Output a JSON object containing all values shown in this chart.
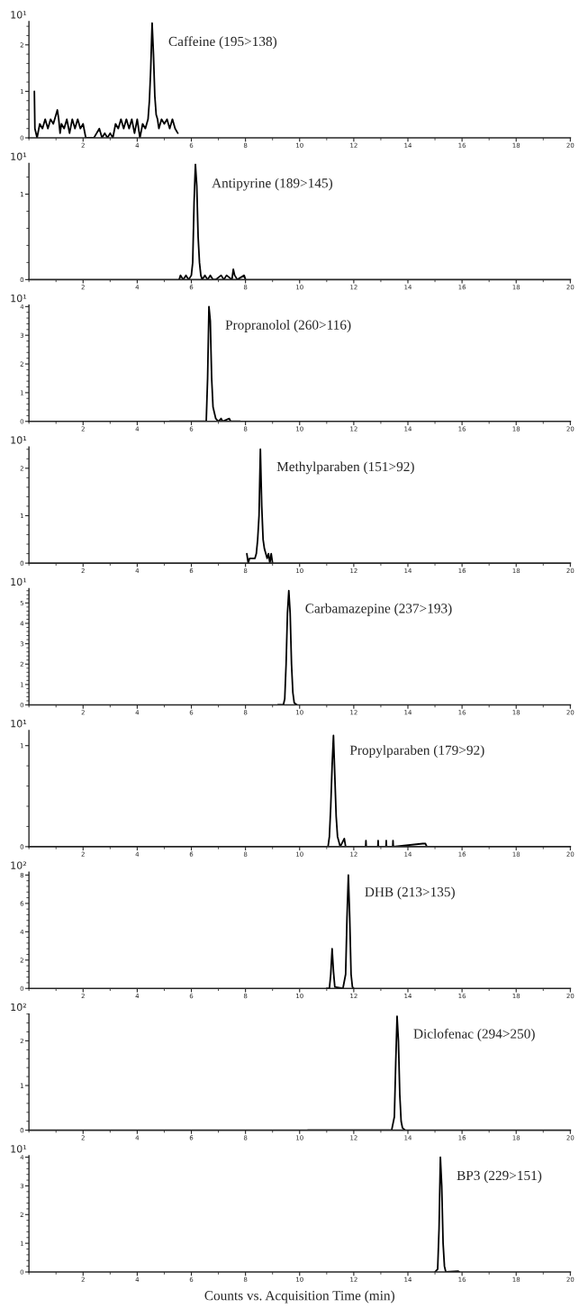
{
  "chart_data": [
    {
      "type": "line",
      "title": "Caffeine (195>138)",
      "ylabel": "10¹",
      "xlim": [
        0,
        20
      ],
      "xticks": [
        2,
        4,
        6,
        8,
        10,
        12,
        14,
        16,
        18,
        20
      ],
      "ylim": [
        0,
        2.5
      ],
      "yticks": [
        0,
        1,
        2
      ],
      "series": [
        {
          "color": "#000000",
          "x": [
            0.2,
            0.22,
            0.3,
            0.4,
            0.5,
            0.6,
            0.7,
            0.8,
            0.9,
            1.0,
            1.05,
            1.1,
            1.15,
            1.2,
            1.3,
            1.4,
            1.5,
            1.6,
            1.7,
            1.8,
            1.9,
            2.0,
            2.1,
            2.4,
            2.5,
            2.6,
            2.7,
            2.8,
            2.9,
            3.0,
            3.1,
            3.2,
            3.3,
            3.4,
            3.5,
            3.6,
            3.7,
            3.8,
            3.9,
            4.0,
            4.1,
            4.2,
            4.3,
            4.4,
            4.45,
            4.5,
            4.55,
            4.6,
            4.65,
            4.7,
            4.75,
            4.8,
            4.9,
            5.0,
            5.1,
            5.2,
            5.3,
            5.4,
            5.5
          ],
          "values": [
            1.0,
            0.2,
            0.0,
            0.3,
            0.2,
            0.4,
            0.2,
            0.4,
            0.3,
            0.5,
            0.6,
            0.4,
            0.1,
            0.3,
            0.2,
            0.4,
            0.1,
            0.4,
            0.2,
            0.4,
            0.2,
            0.3,
            0.0,
            0.0,
            0.1,
            0.2,
            0.0,
            0.1,
            0.0,
            0.1,
            0.0,
            0.3,
            0.2,
            0.4,
            0.2,
            0.4,
            0.2,
            0.4,
            0.1,
            0.4,
            0.0,
            0.3,
            0.2,
            0.4,
            0.8,
            1.5,
            2.47,
            1.8,
            0.9,
            0.5,
            0.4,
            0.2,
            0.4,
            0.3,
            0.4,
            0.2,
            0.4,
            0.2,
            0.1
          ]
        }
      ]
    },
    {
      "type": "line",
      "title": "Antipyrine (189>145)",
      "ylabel": "10¹",
      "xlim": [
        0,
        20
      ],
      "xticks": [
        2,
        4,
        6,
        8,
        10,
        12,
        14,
        16,
        18,
        20
      ],
      "ylim": [
        0,
        1.36
      ],
      "yticks": [
        0,
        1
      ],
      "series": [
        {
          "color": "#000000",
          "x": [
            5.55,
            5.6,
            5.7,
            5.8,
            5.9,
            6.0,
            6.05,
            6.1,
            6.15,
            6.2,
            6.25,
            6.3,
            6.35,
            6.4,
            6.5,
            6.6,
            6.7,
            6.8,
            6.9,
            7.1,
            7.2,
            7.3,
            7.5,
            7.55,
            7.6,
            7.7,
            7.95,
            8.0
          ],
          "values": [
            0,
            0.05,
            0,
            0.05,
            0,
            0.05,
            0.2,
            0.9,
            1.35,
            1.1,
            0.5,
            0.2,
            0.05,
            0,
            0.05,
            0,
            0.05,
            0,
            0,
            0.05,
            0,
            0.05,
            0,
            0.12,
            0.05,
            0,
            0.05,
            0
          ]
        }
      ]
    },
    {
      "type": "line",
      "title": "Propranolol (260>116)",
      "ylabel": "10¹",
      "xlim": [
        0,
        20
      ],
      "xticks": [
        2,
        4,
        6,
        8,
        10,
        12,
        14,
        16,
        18,
        20
      ],
      "ylim": [
        0,
        4.05
      ],
      "yticks": [
        0,
        1,
        2,
        3,
        4
      ],
      "series": [
        {
          "color": "#000000",
          "x": [
            5.2,
            6.55,
            6.6,
            6.65,
            6.7,
            6.75,
            6.8,
            6.85,
            6.9,
            7.0,
            7.1,
            7.15,
            7.4,
            7.45,
            7.8
          ],
          "values": [
            0,
            0,
            1.5,
            4.0,
            3.5,
            1.5,
            0.5,
            0.3,
            0.1,
            0,
            0.1,
            0,
            0.1,
            0,
            0
          ]
        }
      ]
    },
    {
      "type": "line",
      "title": "Methylparaben (151>92)",
      "ylabel": "10¹",
      "xlim": [
        0,
        20
      ],
      "xticks": [
        2,
        4,
        6,
        8,
        10,
        12,
        14,
        16,
        18,
        20
      ],
      "ylim": [
        0,
        2.45
      ],
      "yticks": [
        0,
        1,
        2
      ],
      "series": [
        {
          "color": "#000000",
          "x": [
            8.05,
            8.1,
            8.15,
            8.35,
            8.4,
            8.45,
            8.5,
            8.55,
            8.6,
            8.65,
            8.7,
            8.75,
            8.8,
            8.85,
            8.9,
            8.95,
            9.0
          ],
          "values": [
            0.2,
            0,
            0.1,
            0.1,
            0.2,
            0.5,
            1.0,
            2.4,
            1.2,
            0.5,
            0.3,
            0.2,
            0.1,
            0.2,
            0,
            0.2,
            0
          ]
        }
      ]
    },
    {
      "type": "line",
      "title": "Carbamazepine (237>193)",
      "ylabel": "10¹",
      "xlim": [
        0,
        20
      ],
      "xticks": [
        2,
        4,
        6,
        8,
        10,
        12,
        14,
        16,
        18,
        20
      ],
      "ylim": [
        0,
        5.7
      ],
      "yticks": [
        0,
        1,
        2,
        3,
        4,
        5
      ],
      "series": [
        {
          "color": "#000000",
          "x": [
            9.2,
            9.4,
            9.45,
            9.5,
            9.55,
            9.6,
            9.65,
            9.7,
            9.75,
            9.8,
            9.9
          ],
          "values": [
            0,
            0,
            0.3,
            2.0,
            4.5,
            5.6,
            4.5,
            2.0,
            0.6,
            0.1,
            0
          ]
        }
      ]
    },
    {
      "type": "line",
      "title": "Propylparaben (179>92)",
      "ylabel": "10¹",
      "xlim": [
        0,
        20
      ],
      "xticks": [
        2,
        4,
        6,
        8,
        10,
        12,
        14,
        16,
        18,
        20
      ],
      "ylim": [
        0,
        1.15
      ],
      "yticks": [
        0,
        1
      ],
      "series": [
        {
          "color": "#000000",
          "x": [
            10.5,
            11.05,
            11.1,
            11.15,
            11.2,
            11.25,
            11.3,
            11.35,
            11.4,
            11.5,
            11.65,
            11.7,
            12.44,
            12.45,
            12.46,
            12.89,
            12.9,
            12.91,
            13.19,
            13.2,
            13.21,
            13.44,
            13.45,
            13.46,
            14.55,
            14.65,
            14.7
          ],
          "values": [
            0,
            0,
            0.1,
            0.4,
            0.8,
            1.1,
            0.7,
            0.3,
            0.1,
            0,
            0.08,
            0,
            0,
            0.06,
            0,
            0,
            0.06,
            0,
            0,
            0.06,
            0,
            0,
            0.06,
            0,
            0.03,
            0.03,
            0
          ]
        }
      ]
    },
    {
      "type": "line",
      "title": "DHB (213>135)",
      "ylabel": "10²",
      "xlim": [
        0,
        20
      ],
      "xticks": [
        2,
        4,
        6,
        8,
        10,
        12,
        14,
        16,
        18,
        20
      ],
      "ylim": [
        0,
        8.2
      ],
      "yticks": [
        0,
        2,
        4,
        6,
        8
      ],
      "series": [
        {
          "color": "#000000",
          "x": [
            11.0,
            11.1,
            11.15,
            11.2,
            11.25,
            11.3,
            11.6,
            11.7,
            11.75,
            11.8,
            11.85,
            11.9,
            11.95,
            12.0
          ],
          "values": [
            0,
            0,
            1.0,
            2.8,
            1.2,
            0.1,
            0,
            1.0,
            5.0,
            8.0,
            5.0,
            1.0,
            0.1,
            0
          ]
        }
      ]
    },
    {
      "type": "line",
      "title": "Diclofenac (294>250)",
      "ylabel": "10²",
      "xlim": [
        0,
        20
      ],
      "xticks": [
        2,
        4,
        6,
        8,
        10,
        12,
        14,
        16,
        18,
        20
      ],
      "ylim": [
        0,
        2.6
      ],
      "yticks": [
        0,
        1,
        2
      ],
      "series": [
        {
          "color": "#000000",
          "x": [
            10.3,
            13.4,
            13.5,
            13.55,
            13.6,
            13.65,
            13.7,
            13.75,
            13.8,
            13.9
          ],
          "values": [
            0,
            0,
            0.3,
            1.5,
            2.55,
            2.0,
            0.8,
            0.2,
            0.05,
            0
          ]
        }
      ]
    },
    {
      "type": "line",
      "title": "BP3 (229>151)",
      "ylabel": "10¹",
      "xlabel": "Counts vs. Acquisition Time (min)",
      "xlim": [
        0,
        20
      ],
      "xticks": [
        2,
        4,
        6,
        8,
        10,
        12,
        14,
        16,
        18,
        20
      ],
      "ylim": [
        0,
        4.05
      ],
      "yticks": [
        0,
        1,
        2,
        3,
        4
      ],
      "series": [
        {
          "color": "#000000",
          "x": [
            15.0,
            15.1,
            15.15,
            15.2,
            15.25,
            15.3,
            15.35,
            15.4,
            15.85,
            15.9
          ],
          "values": [
            0,
            0.1,
            1.5,
            4.0,
            3.0,
            1.0,
            0.2,
            0,
            0.03,
            0
          ]
        }
      ]
    }
  ]
}
